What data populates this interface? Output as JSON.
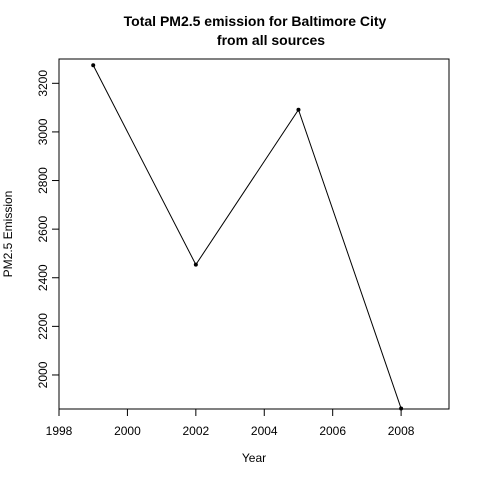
{
  "chart_data": {
    "type": "line",
    "title_lines": [
      "Total PM2.5 emission for Baltimore City",
      "from all sources"
    ],
    "xlabel": "Year",
    "ylabel": "PM2.5  Emission",
    "x": [
      1999,
      2002,
      2005,
      2008
    ],
    "y": [
      3274.18,
      2453.92,
      3091.35,
      1862.28
    ],
    "xlim": [
      1998,
      2009.4
    ],
    "ylim": [
      1860,
      3300
    ],
    "xticks": [
      1998,
      2000,
      2002,
      2004,
      2006,
      2008
    ],
    "yticks": [
      2000,
      2200,
      2400,
      2600,
      2800,
      3000,
      3200
    ],
    "markers": true,
    "grid": false,
    "legend": null,
    "colors": {
      "line": "#000000",
      "box": "#000000"
    }
  }
}
